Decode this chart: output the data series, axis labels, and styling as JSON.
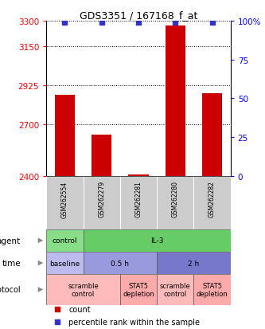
{
  "title": "GDS3351 / 167168_f_at",
  "samples": [
    "GSM262554",
    "GSM262279",
    "GSM262281",
    "GSM262280",
    "GSM262282"
  ],
  "count_values": [
    2870,
    2640,
    2408,
    3270,
    2880
  ],
  "count_base": 2400,
  "percentile_y": [
    3292,
    3292,
    3292,
    3292,
    3292
  ],
  "ylim_left": [
    2400,
    3300
  ],
  "yticks_left": [
    2400,
    2700,
    2925,
    3150,
    3300
  ],
  "yticks_right": [
    0,
    25,
    50,
    75,
    100
  ],
  "ytick_right_labels": [
    "0",
    "25",
    "50",
    "75",
    "100%"
  ],
  "bar_color": "#cc0000",
  "percentile_color": "#3333cc",
  "agent_row": {
    "label": "agent",
    "cells": [
      {
        "text": "control",
        "color": "#88dd88",
        "span": 1
      },
      {
        "text": "IL-3",
        "color": "#66cc66",
        "span": 4
      }
    ]
  },
  "time_row": {
    "label": "time",
    "cells": [
      {
        "text": "baseline",
        "color": "#bbbbee",
        "span": 1
      },
      {
        "text": "0.5 h",
        "color": "#9999dd",
        "span": 2
      },
      {
        "text": "2 h",
        "color": "#7777cc",
        "span": 2
      }
    ]
  },
  "protocol_row": {
    "label": "protocol",
    "cells": [
      {
        "text": "scramble\ncontrol",
        "color": "#ffbbbb",
        "span": 2
      },
      {
        "text": "STAT5\ndepletion",
        "color": "#ffaaaa",
        "span": 1
      },
      {
        "text": "scramble\ncontrol",
        "color": "#ffbbbb",
        "span": 1
      },
      {
        "text": "STAT5\ndepletion",
        "color": "#ffaaaa",
        "span": 1
      }
    ]
  },
  "sample_box_color": "#cccccc",
  "legend_items": [
    {
      "color": "#cc0000",
      "label": "count"
    },
    {
      "color": "#3333cc",
      "label": "percentile rank within the sample"
    }
  ]
}
